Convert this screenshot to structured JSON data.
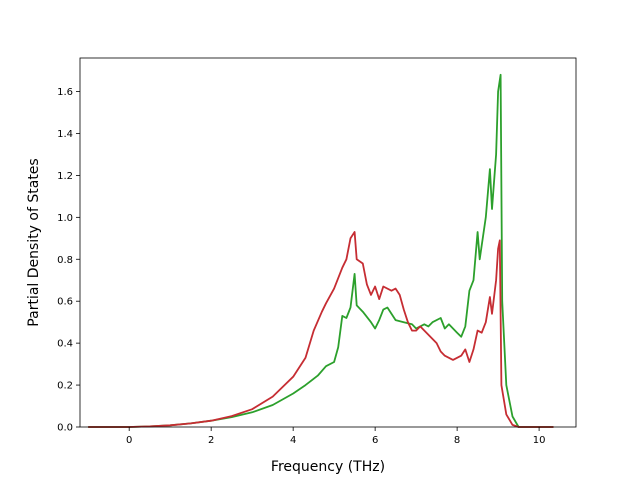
{
  "chart_data": {
    "type": "line",
    "title": "",
    "xlabel": "Frequency (THz)",
    "ylabel": "Partial Density of States",
    "xlim": [
      -1.2,
      10.9
    ],
    "ylim": [
      0.0,
      1.76
    ],
    "xticks": [
      0,
      2,
      4,
      6,
      8,
      10
    ],
    "yticks": [
      0.0,
      0.2,
      0.4,
      0.6,
      0.8,
      1.0,
      1.2,
      1.4,
      1.6
    ],
    "xtick_labels": [
      "0",
      "2",
      "4",
      "6",
      "8",
      "10"
    ],
    "ytick_labels": [
      "0.0",
      "0.2",
      "0.4",
      "0.6",
      "0.8",
      "1.0",
      "1.2",
      "1.4",
      "1.6"
    ],
    "grid": false,
    "series": [
      {
        "color": "#2ca02c",
        "points": [
          [
            -1.0,
            0.0
          ],
          [
            0.0,
            0.0
          ],
          [
            0.5,
            0.003
          ],
          [
            1.0,
            0.008
          ],
          [
            1.5,
            0.017
          ],
          [
            2.0,
            0.03
          ],
          [
            2.5,
            0.047
          ],
          [
            3.0,
            0.07
          ],
          [
            3.5,
            0.105
          ],
          [
            4.0,
            0.16
          ],
          [
            4.3,
            0.2
          ],
          [
            4.6,
            0.245
          ],
          [
            4.8,
            0.29
          ],
          [
            5.0,
            0.31
          ],
          [
            5.1,
            0.38
          ],
          [
            5.2,
            0.53
          ],
          [
            5.3,
            0.52
          ],
          [
            5.4,
            0.57
          ],
          [
            5.5,
            0.73
          ],
          [
            5.55,
            0.58
          ],
          [
            5.7,
            0.55
          ],
          [
            5.9,
            0.5
          ],
          [
            6.0,
            0.47
          ],
          [
            6.1,
            0.51
          ],
          [
            6.2,
            0.56
          ],
          [
            6.3,
            0.57
          ],
          [
            6.5,
            0.51
          ],
          [
            6.7,
            0.5
          ],
          [
            6.9,
            0.49
          ],
          [
            7.0,
            0.47
          ],
          [
            7.2,
            0.49
          ],
          [
            7.3,
            0.48
          ],
          [
            7.4,
            0.5
          ],
          [
            7.6,
            0.52
          ],
          [
            7.7,
            0.47
          ],
          [
            7.8,
            0.49
          ],
          [
            8.0,
            0.45
          ],
          [
            8.1,
            0.43
          ],
          [
            8.2,
            0.48
          ],
          [
            8.3,
            0.65
          ],
          [
            8.4,
            0.7
          ],
          [
            8.5,
            0.93
          ],
          [
            8.55,
            0.8
          ],
          [
            8.7,
            1.0
          ],
          [
            8.8,
            1.23
          ],
          [
            8.85,
            1.04
          ],
          [
            8.95,
            1.3
          ],
          [
            9.0,
            1.6
          ],
          [
            9.06,
            1.68
          ],
          [
            9.1,
            0.6
          ],
          [
            9.2,
            0.2
          ],
          [
            9.35,
            0.05
          ],
          [
            9.5,
            0.0
          ],
          [
            10.35,
            0.0
          ]
        ]
      },
      {
        "color": "#c62d33",
        "points": [
          [
            -1.0,
            0.0
          ],
          [
            0.0,
            0.0
          ],
          [
            0.5,
            0.003
          ],
          [
            1.0,
            0.008
          ],
          [
            1.5,
            0.017
          ],
          [
            2.0,
            0.03
          ],
          [
            2.5,
            0.052
          ],
          [
            3.0,
            0.085
          ],
          [
            3.5,
            0.145
          ],
          [
            4.0,
            0.24
          ],
          [
            4.3,
            0.33
          ],
          [
            4.5,
            0.46
          ],
          [
            4.7,
            0.55
          ],
          [
            4.8,
            0.59
          ],
          [
            5.0,
            0.66
          ],
          [
            5.2,
            0.76
          ],
          [
            5.3,
            0.8
          ],
          [
            5.4,
            0.9
          ],
          [
            5.5,
            0.93
          ],
          [
            5.55,
            0.8
          ],
          [
            5.7,
            0.78
          ],
          [
            5.8,
            0.68
          ],
          [
            5.9,
            0.63
          ],
          [
            6.0,
            0.67
          ],
          [
            6.1,
            0.61
          ],
          [
            6.2,
            0.67
          ],
          [
            6.4,
            0.65
          ],
          [
            6.5,
            0.66
          ],
          [
            6.6,
            0.63
          ],
          [
            6.7,
            0.56
          ],
          [
            6.8,
            0.5
          ],
          [
            6.9,
            0.46
          ],
          [
            7.0,
            0.46
          ],
          [
            7.1,
            0.48
          ],
          [
            7.3,
            0.44
          ],
          [
            7.5,
            0.4
          ],
          [
            7.6,
            0.36
          ],
          [
            7.7,
            0.34
          ],
          [
            7.9,
            0.32
          ],
          [
            8.1,
            0.34
          ],
          [
            8.2,
            0.37
          ],
          [
            8.3,
            0.31
          ],
          [
            8.4,
            0.37
          ],
          [
            8.5,
            0.46
          ],
          [
            8.6,
            0.45
          ],
          [
            8.7,
            0.5
          ],
          [
            8.8,
            0.62
          ],
          [
            8.85,
            0.54
          ],
          [
            8.95,
            0.7
          ],
          [
            9.0,
            0.85
          ],
          [
            9.04,
            0.89
          ],
          [
            9.08,
            0.2
          ],
          [
            9.2,
            0.06
          ],
          [
            9.35,
            0.01
          ],
          [
            9.5,
            0.0
          ],
          [
            10.35,
            0.0
          ]
        ]
      }
    ]
  }
}
